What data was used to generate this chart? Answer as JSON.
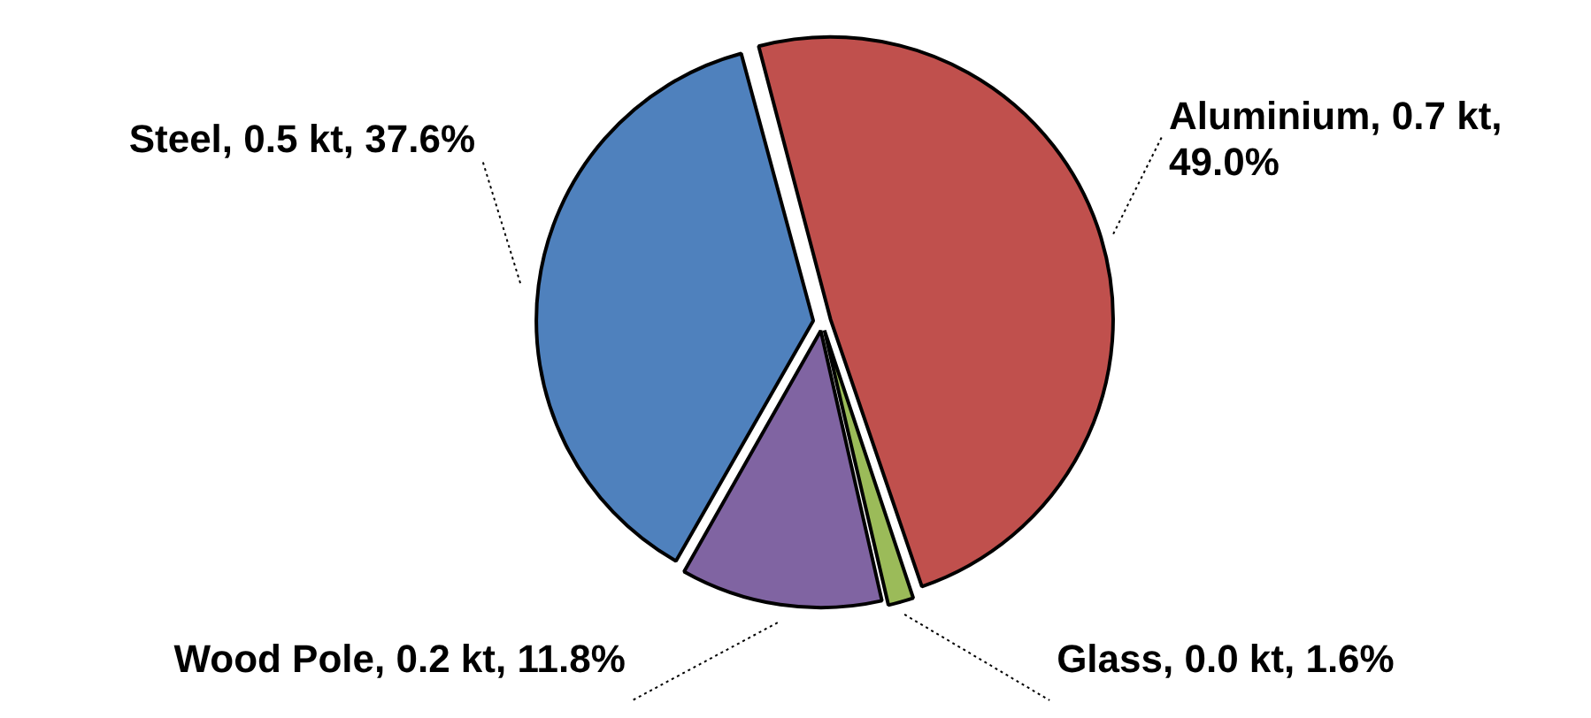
{
  "chart_data": {
    "type": "pie",
    "categories": [
      "Aluminium",
      "Glass",
      "Wood Pole",
      "Steel"
    ],
    "values": [
      49.0,
      1.6,
      11.8,
      37.6
    ],
    "colors": [
      "#c0504d",
      "#9bbb59",
      "#8064a2",
      "#4f81bd"
    ],
    "value_labels": [
      "0.7 kt, 49.0%",
      "0.0 kt, 1.6%",
      "0.2 kt, 11.8%",
      "0.5 kt, 37.6%"
    ],
    "legend": false
  }
}
